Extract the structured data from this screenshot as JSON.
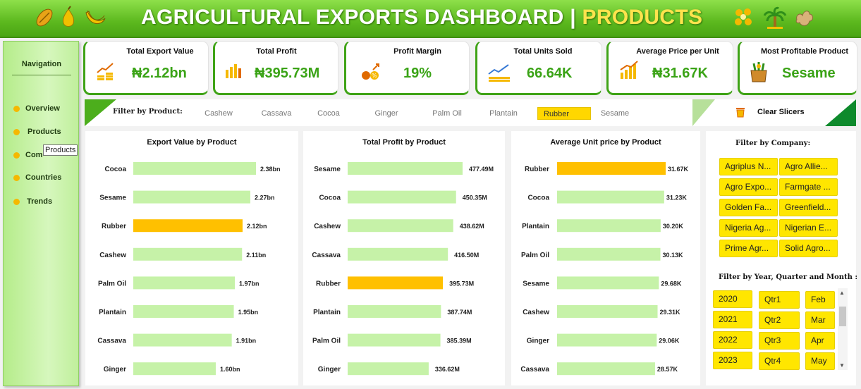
{
  "header": {
    "title_main": "AGRICULTURAL EXPORTS DASHBOARD |",
    "title_sub": " PRODUCTS",
    "icons": [
      "cocoa-pod-icon",
      "pear-icon",
      "banana-icon",
      "seeds-icon",
      "palm-tree-icon",
      "ginger-icon"
    ]
  },
  "navigation": {
    "title": "Navigation",
    "items": [
      "Overview",
      "Products",
      "Companies",
      "Countries",
      "Trends"
    ],
    "visible_items": [
      "Overview",
      "Products",
      "Com",
      "Countries",
      "Trends"
    ],
    "tooltip": "Products"
  },
  "kpis": [
    {
      "title": "Total Export Value",
      "value": "₦2.12bn",
      "icon": "coins-growth-icon"
    },
    {
      "title": "Total Profit",
      "value": "₦395.73M",
      "icon": "bar-chart-coins-icon"
    },
    {
      "title": "Profit Margin",
      "value": "19%",
      "icon": "percent-coins-icon"
    },
    {
      "title": "Total Units Sold",
      "value": "66.64K",
      "icon": "stacked-coins-icon"
    },
    {
      "title": "Average Price per Unit",
      "value": "₦31.67K",
      "icon": "growth-chart-icon"
    },
    {
      "title": "Most Profitable Product",
      "value": "Sesame",
      "icon": "produce-crate-icon"
    }
  ],
  "product_filter": {
    "label": "Filter by Product:",
    "options": [
      "Cashew",
      "Cassava",
      "Cocoa",
      "Ginger",
      "Palm Oil",
      "Plantain",
      "Rubber",
      "Sesame"
    ],
    "selected": "Rubber",
    "clear_label": "Clear Slicers"
  },
  "colors": {
    "bar": "#c6f2a8",
    "highlight": "#ffc000",
    "accent": "#3aa316"
  },
  "chart_data": [
    {
      "type": "bar",
      "orientation": "horizontal",
      "title": "Export Value by Product",
      "categories": [
        "Cocoa",
        "Sesame",
        "Rubber",
        "Cashew",
        "Palm Oil",
        "Plantain",
        "Cassava",
        "Ginger"
      ],
      "values": [
        2.38,
        2.27,
        2.12,
        2.11,
        1.97,
        1.95,
        1.91,
        1.6
      ],
      "labels": [
        "2.38bn",
        "2.27bn",
        "2.12bn",
        "2.11bn",
        "1.97bn",
        "1.95bn",
        "1.91bn",
        "1.60bn"
      ],
      "unit": "bn",
      "highlight": "Rubber"
    },
    {
      "type": "bar",
      "orientation": "horizontal",
      "title": "Total Profit by Product",
      "categories": [
        "Sesame",
        "Cocoa",
        "Cashew",
        "Cassava",
        "Rubber",
        "Plantain",
        "Palm Oil",
        "Ginger"
      ],
      "values": [
        477.49,
        450.35,
        438.62,
        416.5,
        395.73,
        387.74,
        385.39,
        336.62
      ],
      "labels": [
        "477.49M",
        "450.35M",
        "438.62M",
        "416.50M",
        "395.73M",
        "387.74M",
        "385.39M",
        "336.62M"
      ],
      "unit": "M",
      "highlight": "Rubber"
    },
    {
      "type": "bar",
      "orientation": "horizontal",
      "title": "Average Unit price by Product",
      "categories": [
        "Rubber",
        "Cocoa",
        "Plantain",
        "Palm Oil",
        "Sesame",
        "Cashew",
        "Ginger",
        "Cassava"
      ],
      "values": [
        31.67,
        31.23,
        30.2,
        30.13,
        29.68,
        29.31,
        29.06,
        28.57
      ],
      "labels": [
        "31.67K",
        "31.23K",
        "30.20K",
        "30.13K",
        "29.68K",
        "29.31K",
        "29.06K",
        "28.57K"
      ],
      "unit": "K",
      "highlight": "Rubber"
    }
  ],
  "company_filter": {
    "title": "Filter by Company:",
    "options": [
      "Agriplus N...",
      "Agro Allie...",
      "Agro Expo...",
      "Farmgate ...",
      "Golden Fa...",
      "Greenfield...",
      "Nigeria Ag...",
      "Nigerian E...",
      "Prime Agr...",
      "Solid Agro..."
    ]
  },
  "time_filter": {
    "title": "Filter by Year, Quarter and Month :",
    "years": [
      "2020",
      "2021",
      "2022",
      "2023"
    ],
    "quarters": [
      "Qtr1",
      "Qtr2",
      "Qtr3",
      "Qtr4"
    ],
    "months": [
      "Feb",
      "Mar",
      "Apr",
      "May"
    ]
  }
}
